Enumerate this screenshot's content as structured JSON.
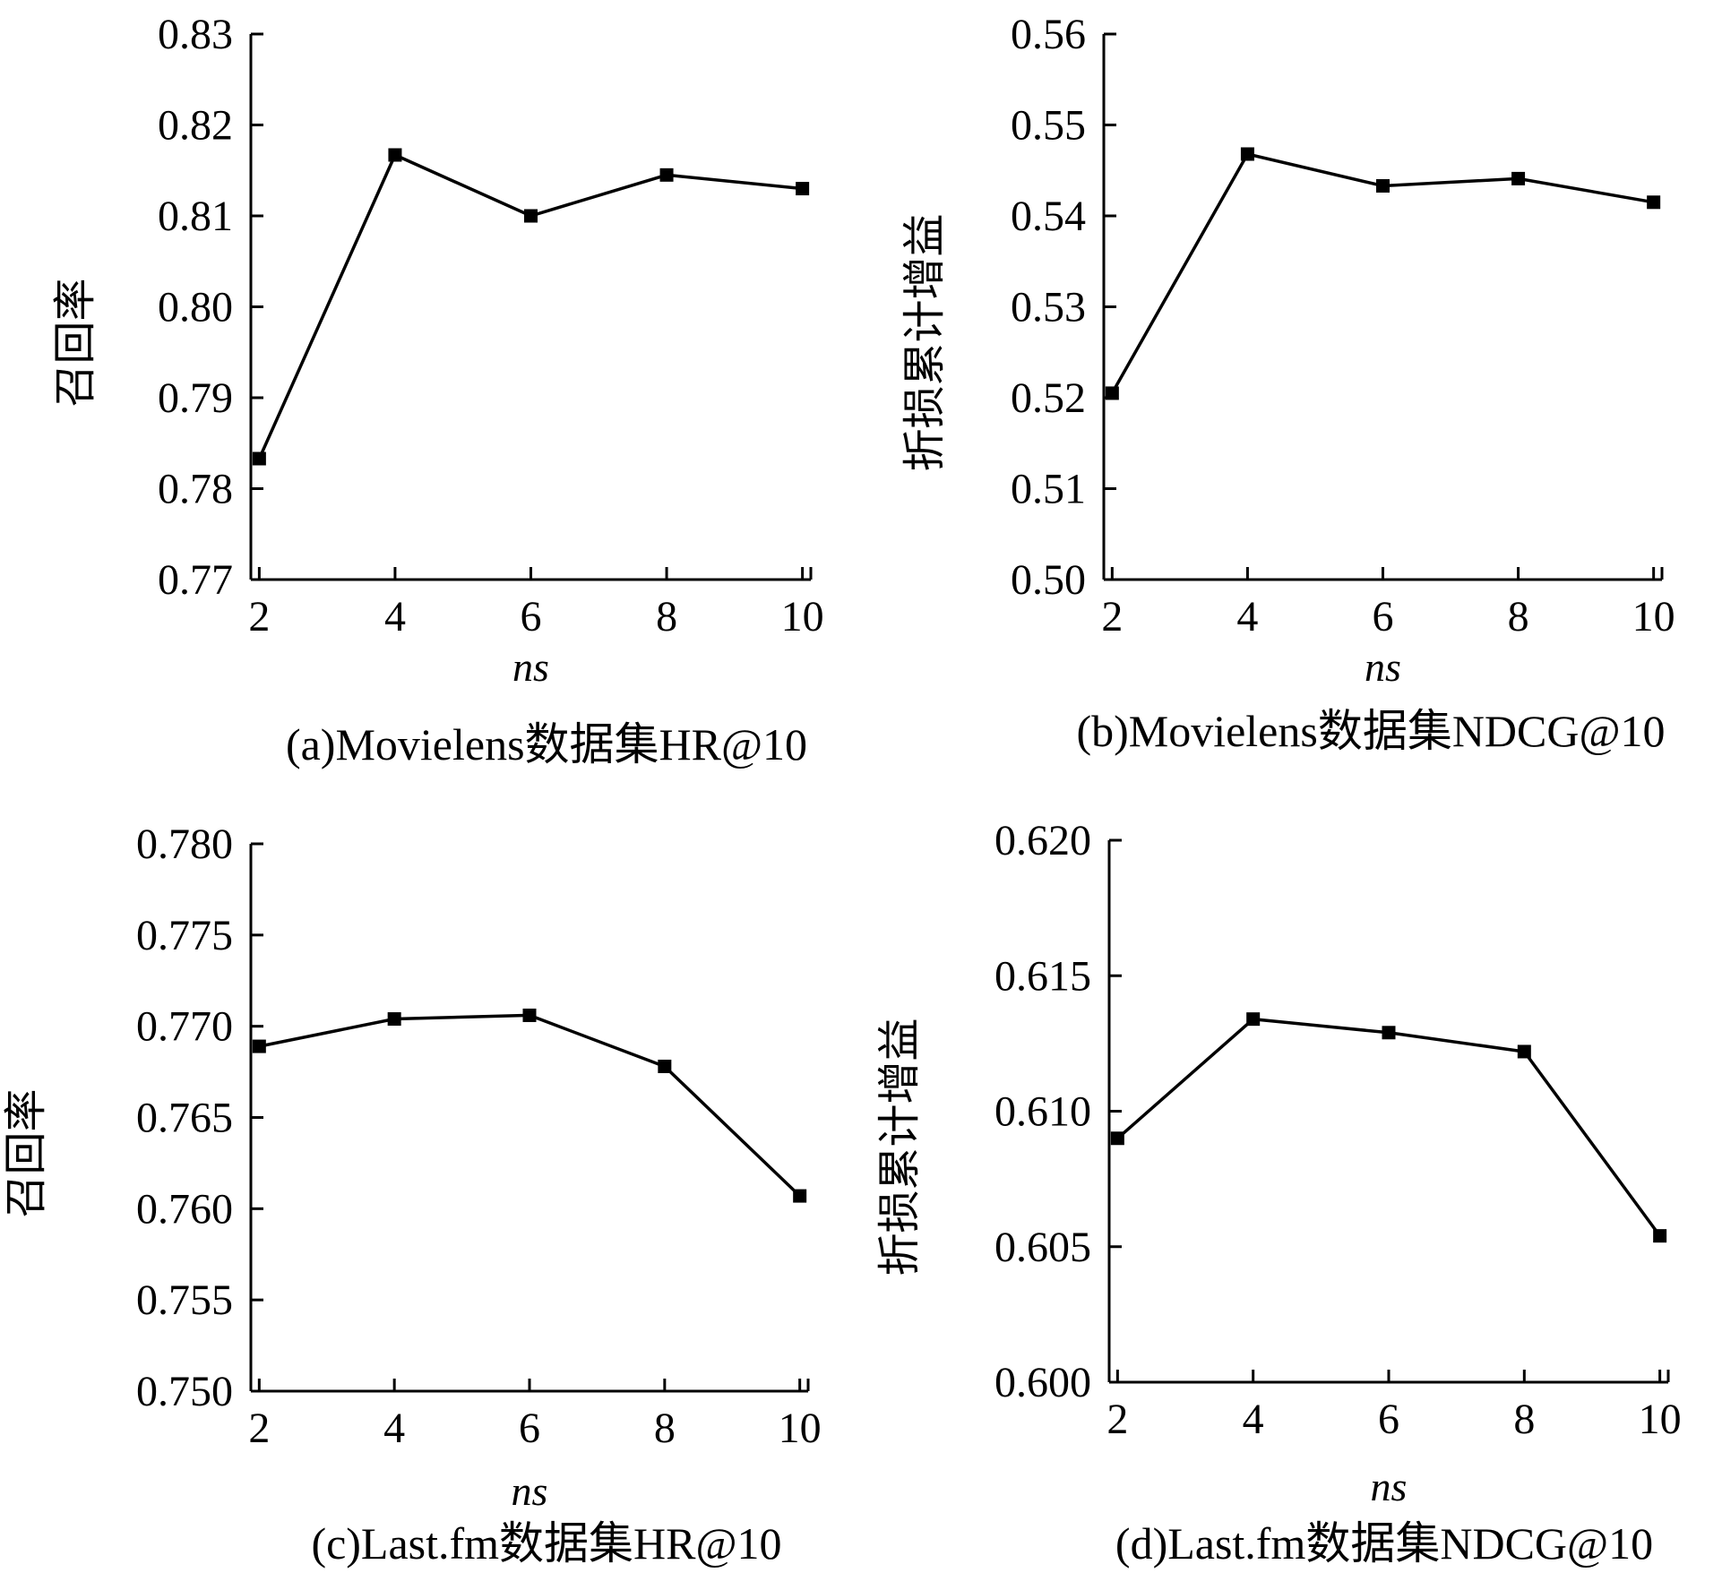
{
  "chart_data": [
    {
      "type": "line",
      "caption": "(a)Movielens数据集HR@10",
      "xlabel": "ns",
      "ylabel": "召回率",
      "x": [
        2,
        4,
        6,
        8,
        10
      ],
      "xticks": [
        "2",
        "4",
        "6",
        "8",
        "10"
      ],
      "ylim": [
        0.77,
        0.83
      ],
      "yticks": [
        "0.77",
        "0.78",
        "0.79",
        "0.80",
        "0.81",
        "0.82",
        "0.83"
      ],
      "series": [
        {
          "values": [
            0.7833,
            0.8167,
            0.81,
            0.8145,
            0.813
          ]
        }
      ],
      "marker": "square",
      "line_color": "#000000",
      "grid": false
    },
    {
      "type": "line",
      "caption": "(b)Movielens数据集NDCG@10",
      "xlabel": "ns",
      "ylabel": "折损累计增益",
      "x": [
        2,
        4,
        6,
        8,
        10
      ],
      "xticks": [
        "2",
        "4",
        "6",
        "8",
        "10"
      ],
      "ylim": [
        0.5,
        0.56
      ],
      "yticks": [
        "0.50",
        "0.51",
        "0.52",
        "0.53",
        "0.54",
        "0.55",
        "0.56"
      ],
      "series": [
        {
          "values": [
            0.5205,
            0.5468,
            0.5433,
            0.5441,
            0.5415
          ]
        }
      ],
      "marker": "square",
      "line_color": "#000000",
      "grid": false
    },
    {
      "type": "line",
      "caption": "(c)Last.fm数据集HR@10",
      "xlabel": "ns",
      "ylabel": "召回率",
      "x": [
        2,
        4,
        6,
        8,
        10
      ],
      "xticks": [
        "2",
        "4",
        "6",
        "8",
        "10"
      ],
      "ylim": [
        0.75,
        0.78
      ],
      "yticks": [
        "0.750",
        "0.755",
        "0.760",
        "0.765",
        "0.770",
        "0.775",
        "0.780"
      ],
      "series": [
        {
          "values": [
            0.7689,
            0.7704,
            0.7706,
            0.7678,
            0.7607
          ]
        }
      ],
      "marker": "square",
      "line_color": "#000000",
      "grid": false
    },
    {
      "type": "line",
      "caption": "(d)Last.fm数据集NDCG@10",
      "xlabel": "ns",
      "ylabel": "折损累计增益",
      "x": [
        2,
        4,
        6,
        8,
        10
      ],
      "xticks": [
        "2",
        "4",
        "6",
        "8",
        "10"
      ],
      "ylim": [
        0.6,
        0.62
      ],
      "yticks": [
        "0.600",
        "0.605",
        "0.610",
        "0.615",
        "0.620"
      ],
      "series": [
        {
          "values": [
            0.609,
            0.6134,
            0.6129,
            0.6122,
            0.6054
          ]
        }
      ],
      "marker": "square",
      "line_color": "#000000",
      "grid": false
    }
  ]
}
